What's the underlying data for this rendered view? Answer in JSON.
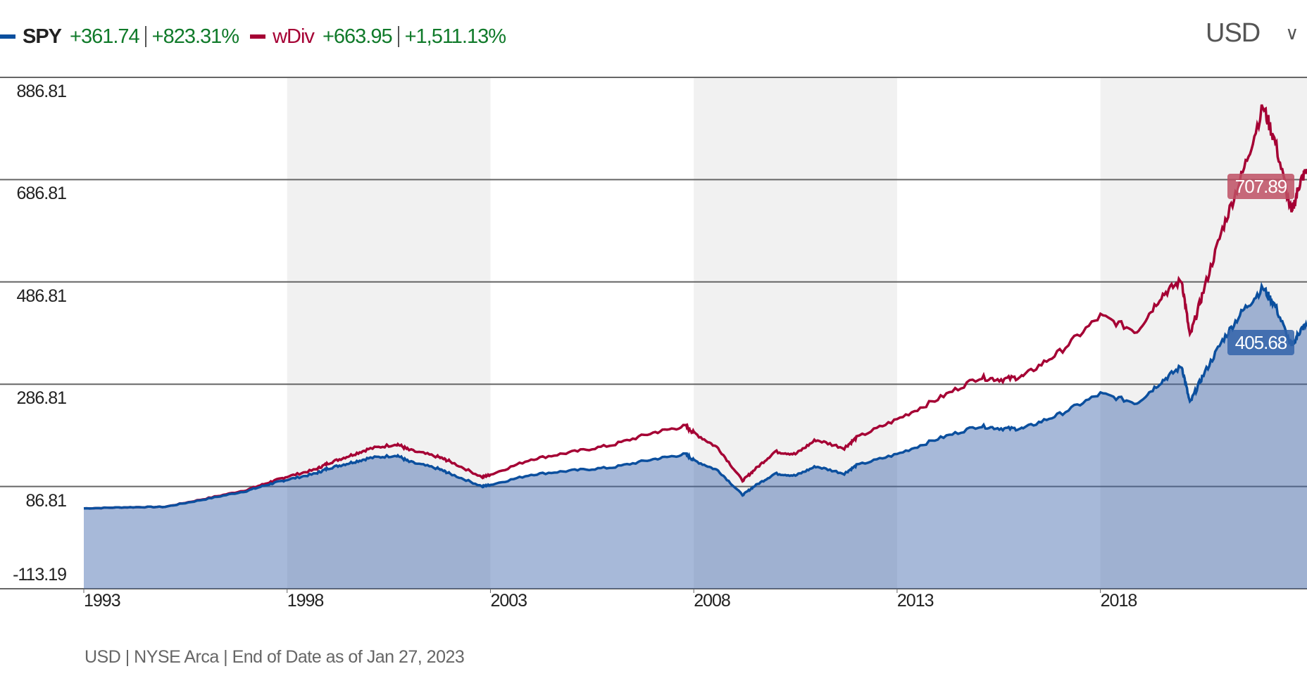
{
  "legend": {
    "series1": {
      "name": "SPY",
      "change": "+361.74",
      "change_pct": "+823.31%",
      "color": "#0b4f9e"
    },
    "series2": {
      "name": "wDiv",
      "change": "+663.95",
      "change_pct": "+1,511.13%",
      "color": "#a50034"
    }
  },
  "currency_selector": {
    "value": "USD",
    "icon": "chevron-down-icon"
  },
  "footer": "USD | NYSE Arca | End of Date as of Jan 27, 2023",
  "chart_data": {
    "type": "line",
    "title": "",
    "xlabel": "",
    "ylabel": "",
    "x_ticks": [
      "1993",
      "1998",
      "2003",
      "2008",
      "2013",
      "2018"
    ],
    "y_ticks": [
      "886.81",
      "686.81",
      "486.81",
      "286.81",
      "86.81",
      "-113.19"
    ],
    "ylim": [
      -113.19,
      886.81
    ],
    "xlim": [
      1993.0,
      2023.08
    ],
    "shaded_periods": [
      [
        1998,
        2003
      ],
      [
        2008,
        2013
      ],
      [
        2018,
        2023.08
      ]
    ],
    "grid": true,
    "legend_position": "top-left",
    "x": [
      1993.0,
      1994.0,
      1995.0,
      1996.0,
      1997.0,
      1997.6,
      1998.0,
      1998.7,
      1999.0,
      1999.5,
      2000.0,
      2000.7,
      2001.0,
      2001.7,
      2002.0,
      2002.8,
      2003.0,
      2004.0,
      2005.0,
      2006.0,
      2007.0,
      2007.8,
      2008.0,
      2008.6,
      2009.2,
      2009.5,
      2010.0,
      2010.5,
      2011.0,
      2011.7,
      2012.0,
      2013.0,
      2014.0,
      2015.0,
      2015.6,
      2016.1,
      2017.0,
      2018.0,
      2018.9,
      2019.5,
      2020.0,
      2020.2,
      2020.5,
      2021.0,
      2021.5,
      2022.0,
      2022.3,
      2022.7,
      2022.9,
      2023.08
    ],
    "series": [
      {
        "name": "SPY",
        "end_label": "405.68",
        "values": [
          44,
          46,
          47,
          62,
          78,
          92,
          100,
          112,
          122,
          132,
          142,
          148,
          135,
          122,
          112,
          87,
          90,
          110,
          118,
          124,
          140,
          150,
          138,
          118,
          70,
          88,
          112,
          108,
          126,
          112,
          128,
          150,
          180,
          205,
          200,
          200,
          228,
          268,
          250,
          292,
          322,
          250,
          300,
          372,
          430,
          475,
          440,
          360,
          390,
          405.68
        ]
      },
      {
        "name": "wDiv",
        "end_label": "707.89",
        "values": [
          44,
          46,
          47,
          63,
          80,
          96,
          106,
          120,
          132,
          146,
          160,
          170,
          158,
          145,
          136,
          105,
          110,
          140,
          154,
          168,
          192,
          205,
          192,
          162,
          98,
          120,
          155,
          150,
          178,
          162,
          182,
          218,
          258,
          300,
          296,
          302,
          350,
          420,
          390,
          460,
          490,
          380,
          460,
          590,
          700,
          830,
          760,
          620,
          680,
          707.89
        ]
      }
    ]
  }
}
